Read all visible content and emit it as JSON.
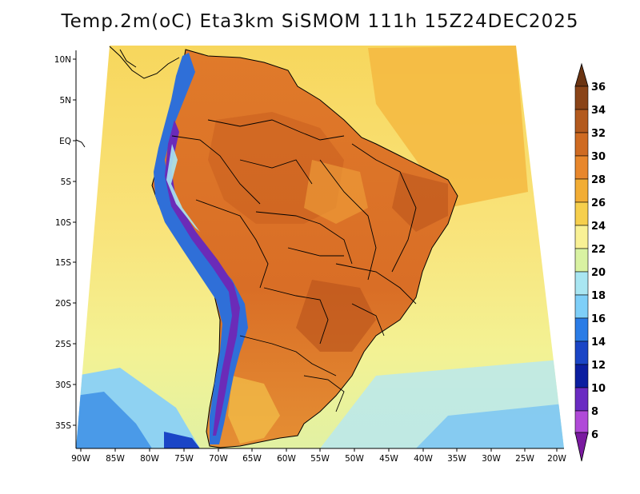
{
  "title": "Temp.2m(oC) Eta3km SiSMOM 111h 15Z24DEC2025",
  "latitude_labels": [
    "10N",
    "5N",
    "EQ",
    "5S",
    "10S",
    "15S",
    "20S",
    "25S",
    "30S",
    "35S"
  ],
  "longitude_labels": [
    "90W",
    "85W",
    "80W",
    "75W",
    "70W",
    "65W",
    "60W",
    "55W",
    "50W",
    "45W",
    "40W",
    "35W",
    "30W",
    "25W",
    "20W"
  ],
  "colorbar": {
    "labels": [
      "36",
      "34",
      "32",
      "30",
      "28",
      "26",
      "24",
      "22",
      "20",
      "18",
      "16",
      "14",
      "12",
      "10",
      "8",
      "6"
    ],
    "colors_top_to_bottom": [
      "#6b3412",
      "#8a4418",
      "#b35a1e",
      "#cf6b22",
      "#e8872c",
      "#f2ad35",
      "#f6cf4d",
      "#f9f195",
      "#d9f2a2",
      "#a9e6f2",
      "#7ecff8",
      "#2a7ce6",
      "#1a45c6",
      "#0b1ea0",
      "#6a2bc2",
      "#b04ad8",
      "#7a1aa0"
    ]
  },
  "palette": {
    "ocean_north": "#f9e577",
    "ocean_south": "#eff391",
    "land_hot": "#e2782a",
    "land_warm": "#f0a33a",
    "andes_cold": "#2f6fd8",
    "andes_peak": "#6b2bb8",
    "sw_cool": "#8fd2f2",
    "sw_cooler": "#4a9ae8",
    "outline": "#000000"
  }
}
